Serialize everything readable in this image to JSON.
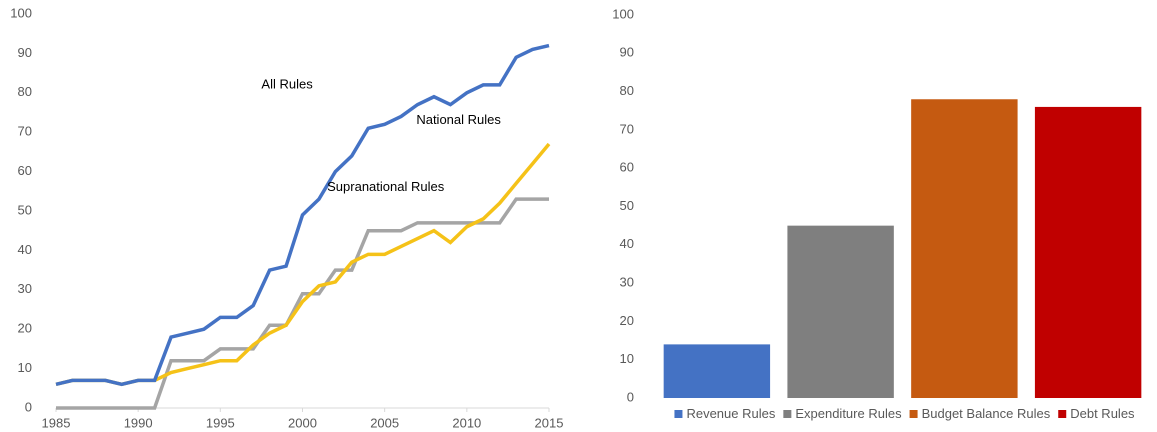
{
  "chart_data": [
    {
      "type": "line",
      "x": [
        1985,
        1986,
        1987,
        1988,
        1989,
        1990,
        1991,
        1992,
        1993,
        1994,
        1995,
        1996,
        1997,
        1998,
        1999,
        2000,
        2001,
        2002,
        2003,
        2004,
        2005,
        2006,
        2007,
        2008,
        2009,
        2010,
        2011,
        2012,
        2013,
        2014,
        2015
      ],
      "series": [
        {
          "name": "All Rules",
          "color": "#4472c4",
          "values": [
            6,
            7,
            7,
            7,
            6,
            7,
            7,
            18,
            19,
            20,
            23,
            23,
            26,
            35,
            36,
            49,
            53,
            60,
            64,
            71,
            72,
            74,
            77,
            79,
            77,
            80,
            82,
            82,
            89,
            91,
            92
          ]
        },
        {
          "name": "National Rules",
          "color": "#f5c218",
          "values": [
            6,
            7,
            7,
            7,
            6,
            7,
            7,
            9,
            10,
            11,
            12,
            12,
            16,
            19,
            21,
            27,
            31,
            32,
            37,
            39,
            39,
            41,
            43,
            45,
            42,
            46,
            48,
            52,
            57,
            62,
            67
          ]
        },
        {
          "name": "Supranational Rules",
          "color": "#a5a5a5",
          "values": [
            0,
            0,
            0,
            0,
            0,
            0,
            0,
            12,
            12,
            12,
            15,
            15,
            15,
            21,
            21,
            29,
            29,
            35,
            35,
            45,
            45,
            45,
            47,
            47,
            47,
            47,
            47,
            47,
            53,
            53,
            53
          ]
        }
      ],
      "xlim": [
        1985,
        2015
      ],
      "xticks": [
        1985,
        1990,
        1995,
        2000,
        2005,
        2010,
        2015
      ],
      "ylim": [
        0,
        100
      ],
      "yticks": [
        0,
        10,
        20,
        30,
        40,
        50,
        60,
        70,
        80,
        90,
        100
      ]
    },
    {
      "type": "bar",
      "categories": [
        "Revenue Rules",
        "Expenditure Rules",
        "Budget Balance Rules",
        "Debt Rules"
      ],
      "values": [
        14,
        45,
        78,
        76
      ],
      "colors": [
        "#4472c4",
        "#7f7f7f",
        "#c55a11",
        "#c00000"
      ],
      "ylim": [
        0,
        100
      ],
      "yticks": [
        0,
        10,
        20,
        30,
        40,
        50,
        60,
        70,
        80,
        90,
        100
      ],
      "legend": "bottom"
    }
  ]
}
